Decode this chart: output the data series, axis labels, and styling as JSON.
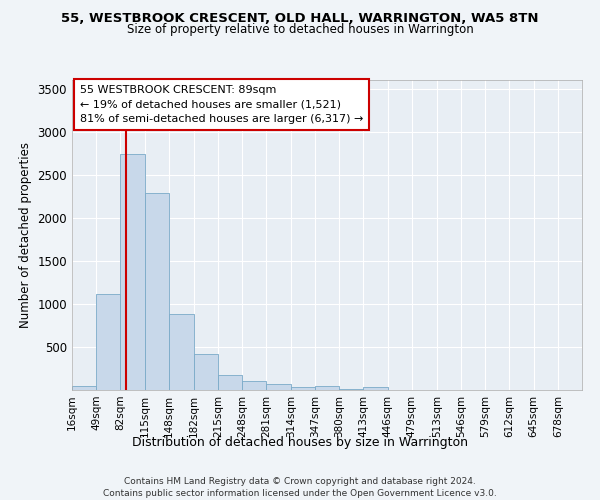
{
  "title1": "55, WESTBROOK CRESCENT, OLD HALL, WARRINGTON, WA5 8TN",
  "title2": "Size of property relative to detached houses in Warrington",
  "xlabel": "Distribution of detached houses by size in Warrington",
  "ylabel": "Number of detached properties",
  "footnote1": "Contains HM Land Registry data © Crown copyright and database right 2024.",
  "footnote2": "Contains public sector information licensed under the Open Government Licence v3.0.",
  "annotation_line1": "55 WESTBROOK CRESCENT: 89sqm",
  "annotation_line2": "← 19% of detached houses are smaller (1,521)",
  "annotation_line3": "81% of semi-detached houses are larger (6,317) →",
  "property_size": 89,
  "bar_color": "#c8d8ea",
  "bar_edge_color": "#7aaac8",
  "vline_color": "#cc0000",
  "background_color": "#e8eef4",
  "grid_color": "#ffffff",
  "categories": [
    "16sqm",
    "49sqm",
    "82sqm",
    "115sqm",
    "148sqm",
    "182sqm",
    "215sqm",
    "248sqm",
    "281sqm",
    "314sqm",
    "347sqm",
    "380sqm",
    "413sqm",
    "446sqm",
    "479sqm",
    "513sqm",
    "546sqm",
    "579sqm",
    "612sqm",
    "645sqm",
    "678sqm"
  ],
  "bin_edges": [
    16,
    49,
    82,
    115,
    148,
    182,
    215,
    248,
    281,
    314,
    347,
    380,
    413,
    446,
    479,
    513,
    546,
    579,
    612,
    645,
    678,
    711
  ],
  "bar_heights": [
    50,
    1110,
    2740,
    2290,
    880,
    420,
    175,
    100,
    65,
    40,
    50,
    10,
    30,
    3,
    2,
    1,
    1,
    0,
    0,
    0,
    0
  ],
  "ylim": [
    0,
    3600
  ],
  "yticks": [
    0,
    500,
    1000,
    1500,
    2000,
    2500,
    3000,
    3500
  ]
}
